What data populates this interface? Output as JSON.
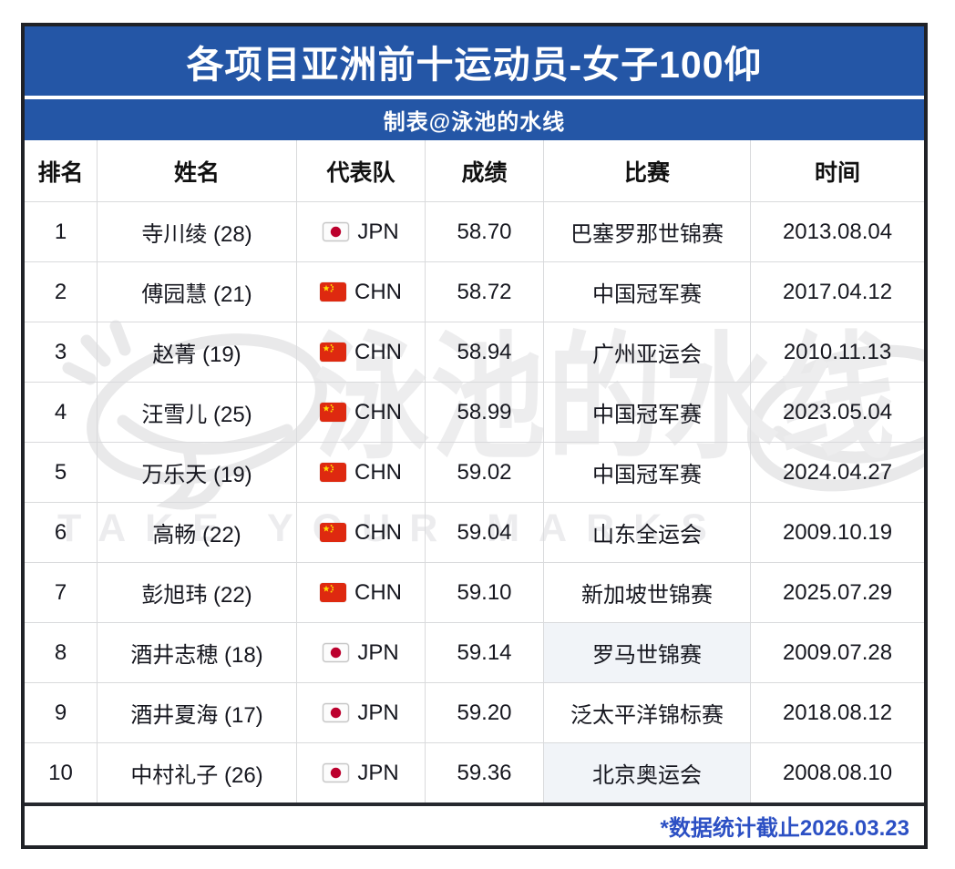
{
  "header": {
    "title": "各项目亚洲前十运动员-女子100仰",
    "subtitle": "制表@泳池的水线"
  },
  "table": {
    "columns": [
      "排名",
      "姓名",
      "代表队",
      "成绩",
      "比赛",
      "时间"
    ],
    "rows": [
      {
        "rank": "1",
        "name": "寺川绫 (28)",
        "team": "JPN",
        "result": "58.70",
        "meet": "巴塞罗那世锦赛",
        "date": "2013.08.04",
        "highlight": false
      },
      {
        "rank": "2",
        "name": "傅园慧 (21)",
        "team": "CHN",
        "result": "58.72",
        "meet": "中国冠军赛",
        "date": "2017.04.12",
        "highlight": false
      },
      {
        "rank": "3",
        "name": "赵菁 (19)",
        "team": "CHN",
        "result": "58.94",
        "meet": "广州亚运会",
        "date": "2010.11.13",
        "highlight": false
      },
      {
        "rank": "4",
        "name": "汪雪儿 (25)",
        "team": "CHN",
        "result": "58.99",
        "meet": "中国冠军赛",
        "date": "2023.05.04",
        "highlight": false
      },
      {
        "rank": "5",
        "name": "万乐天 (19)",
        "team": "CHN",
        "result": "59.02",
        "meet": "中国冠军赛",
        "date": "2024.04.27",
        "highlight": false
      },
      {
        "rank": "6",
        "name": "高畅 (22)",
        "team": "CHN",
        "result": "59.04",
        "meet": "山东全运会",
        "date": "2009.10.19",
        "highlight": false
      },
      {
        "rank": "7",
        "name": "彭旭玮 (22)",
        "team": "CHN",
        "result": "59.10",
        "meet": "新加坡世锦赛",
        "date": "2025.07.29",
        "highlight": false
      },
      {
        "rank": "8",
        "name": "酒井志穂 (18)",
        "team": "JPN",
        "result": "59.14",
        "meet": "罗马世锦赛",
        "date": "2009.07.28",
        "highlight": true
      },
      {
        "rank": "9",
        "name": "酒井夏海 (17)",
        "team": "JPN",
        "result": "59.20",
        "meet": "泛太平洋锦标赛",
        "date": "2018.08.12",
        "highlight": false
      },
      {
        "rank": "10",
        "name": "中村礼子 (26)",
        "team": "JPN",
        "result": "59.36",
        "meet": "北京奥运会",
        "date": "2008.08.10",
        "highlight": true
      }
    ]
  },
  "footer": {
    "note": "*数据统计截止2026.03.23"
  },
  "watermark": {
    "text": "泳池的水线",
    "tagline": "TAKE YOUR MARKS"
  },
  "icons": {
    "JPN": "japan-flag-icon",
    "CHN": "china-flag-icon"
  },
  "colors": {
    "header_blue": "#2456a6",
    "footer_blue": "#2c50c4",
    "highlight_cell": "#f1f4f8",
    "grid_line": "#d9dadc",
    "outer_border": "#26282e"
  },
  "chart_data": {
    "type": "table",
    "title": "各项目亚洲前十运动员-女子100仰",
    "subtitle": "制表@泳池的水线",
    "columns": [
      "排名",
      "姓名",
      "代表队",
      "成绩",
      "比赛",
      "时间"
    ],
    "rows": [
      [
        "1",
        "寺川绫 (28)",
        "JPN",
        "58.70",
        "巴塞罗那世锦赛",
        "2013.08.04"
      ],
      [
        "2",
        "傅园慧 (21)",
        "CHN",
        "58.72",
        "中国冠军赛",
        "2017.04.12"
      ],
      [
        "3",
        "赵菁 (19)",
        "CHN",
        "58.94",
        "广州亚运会",
        "2010.11.13"
      ],
      [
        "4",
        "汪雪儿 (25)",
        "CHN",
        "58.99",
        "中国冠军赛",
        "2023.05.04"
      ],
      [
        "5",
        "万乐天 (19)",
        "CHN",
        "59.02",
        "中国冠军赛",
        "2024.04.27"
      ],
      [
        "6",
        "高畅 (22)",
        "CHN",
        "59.04",
        "山东全运会",
        "2009.10.19"
      ],
      [
        "7",
        "彭旭玮 (22)",
        "CHN",
        "59.10",
        "新加坡世锦赛",
        "2025.07.29"
      ],
      [
        "8",
        "酒井志穂 (18)",
        "JPN",
        "59.14",
        "罗马世锦赛",
        "2009.07.28"
      ],
      [
        "9",
        "酒井夏海 (17)",
        "JPN",
        "59.20",
        "泛太平洋锦标赛",
        "2018.08.12"
      ],
      [
        "10",
        "中村礼子 (26)",
        "JPN",
        "59.36",
        "北京奥运会",
        "2008.08.10"
      ]
    ],
    "footnote": "*数据统计截止2026.03.23"
  }
}
